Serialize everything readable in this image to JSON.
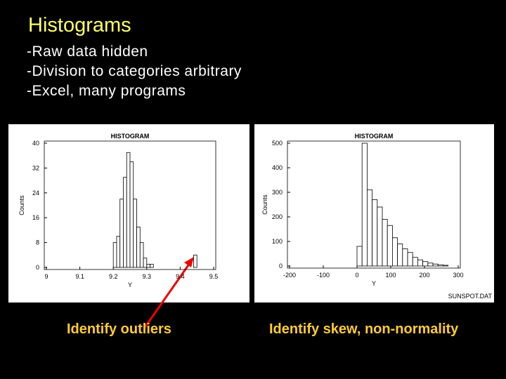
{
  "slide": {
    "title": "Histograms",
    "bullets": [
      "-Raw data hidden",
      "-Division to categories arbitrary",
      "-Excel, many programs"
    ],
    "captions": [
      "Identify outliers",
      "Identify skew, non-normality"
    ]
  },
  "chart_data": [
    {
      "type": "histogram",
      "title": "HISTOGRAM",
      "xlabel": "Y",
      "ylabel": "Counts",
      "color": "#ffffff",
      "bins": [
        9.2,
        9.21,
        9.22,
        9.23,
        9.24,
        9.25,
        9.26,
        9.27,
        9.28,
        9.29,
        9.3,
        9.31,
        9.32,
        9.33,
        9.34,
        9.35,
        9.36,
        9.37,
        9.38,
        9.39,
        9.4,
        9.41,
        9.42,
        9.43,
        9.44,
        9.45
      ],
      "values": [
        8,
        10,
        22,
        29,
        37,
        34,
        22,
        13,
        8,
        3,
        1,
        1,
        0,
        0,
        0,
        0,
        0,
        0,
        0,
        0,
        0,
        0,
        0,
        0,
        4
      ],
      "xlim": [
        9,
        9.5
      ],
      "xticks": [
        9,
        9.1,
        9.2,
        9.3,
        9.4,
        9.5
      ],
      "ylim": [
        0,
        40
      ],
      "yticks": [
        0,
        8,
        16,
        24,
        32,
        40
      ]
    },
    {
      "type": "histogram",
      "title": "HISTOGRAM",
      "xlabel": "Y",
      "ylabel": "Counts",
      "note": "SUNSPOT.DAT",
      "color": "#ffffff",
      "bins": [
        0,
        15,
        30,
        45,
        60,
        75,
        90,
        105,
        120,
        135,
        150,
        165,
        180,
        195,
        210,
        225,
        240,
        255,
        270
      ],
      "values": [
        80,
        500,
        310,
        270,
        240,
        190,
        165,
        115,
        90,
        70,
        55,
        35,
        25,
        18,
        12,
        8,
        5,
        3
      ],
      "xlim": [
        -200,
        300
      ],
      "xticks": [
        -200,
        -100,
        0,
        100,
        200,
        300
      ],
      "ylim": [
        0,
        500
      ],
      "yticks": [
        0,
        100,
        200,
        300,
        400,
        500
      ]
    }
  ]
}
